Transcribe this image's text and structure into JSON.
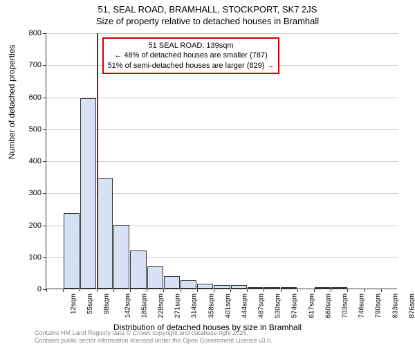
{
  "title": {
    "line1": "51, SEAL ROAD, BRAMHALL, STOCKPORT, SK7 2JS",
    "line2": "Size of property relative to detached houses in Bramhall"
  },
  "chart": {
    "type": "histogram",
    "ylabel": "Number of detached properties",
    "xlabel": "Distribution of detached houses by size in Bramhall",
    "ylim": [
      0,
      800
    ],
    "ytick_step": 100,
    "yticks": [
      0,
      100,
      200,
      300,
      400,
      500,
      600,
      700,
      800
    ],
    "xticks": [
      "12sqm",
      "55sqm",
      "98sqm",
      "142sqm",
      "185sqm",
      "228sqm",
      "271sqm",
      "314sqm",
      "358sqm",
      "401sqm",
      "444sqm",
      "487sqm",
      "530sqm",
      "574sqm",
      "617sqm",
      "660sqm",
      "703sqm",
      "746sqm",
      "790sqm",
      "833sqm",
      "876sqm"
    ],
    "bar_values": [
      0,
      235,
      595,
      345,
      200,
      120,
      70,
      40,
      25,
      15,
      10,
      10,
      5,
      2,
      2,
      0,
      1,
      1,
      0,
      0,
      0
    ],
    "bar_fill": "#d6e1f4",
    "bar_stroke": "#333333",
    "grid_color": "#cccccc",
    "background": "#ffffff",
    "marker": {
      "x_index": 3,
      "color": "#cc0000"
    },
    "annotation": {
      "line1": "51 SEAL ROAD: 139sqm",
      "line2": "← 48% of detached houses are smaller (787)",
      "line3": "51% of semi-detached houses are larger (829) →",
      "border_color": "#cc0000"
    }
  },
  "footer": {
    "line1": "Contains HM Land Registry data © Crown copyright and database right 2025.",
    "line2": "Contains public sector information licensed under the Open Government Licence v3.0."
  }
}
